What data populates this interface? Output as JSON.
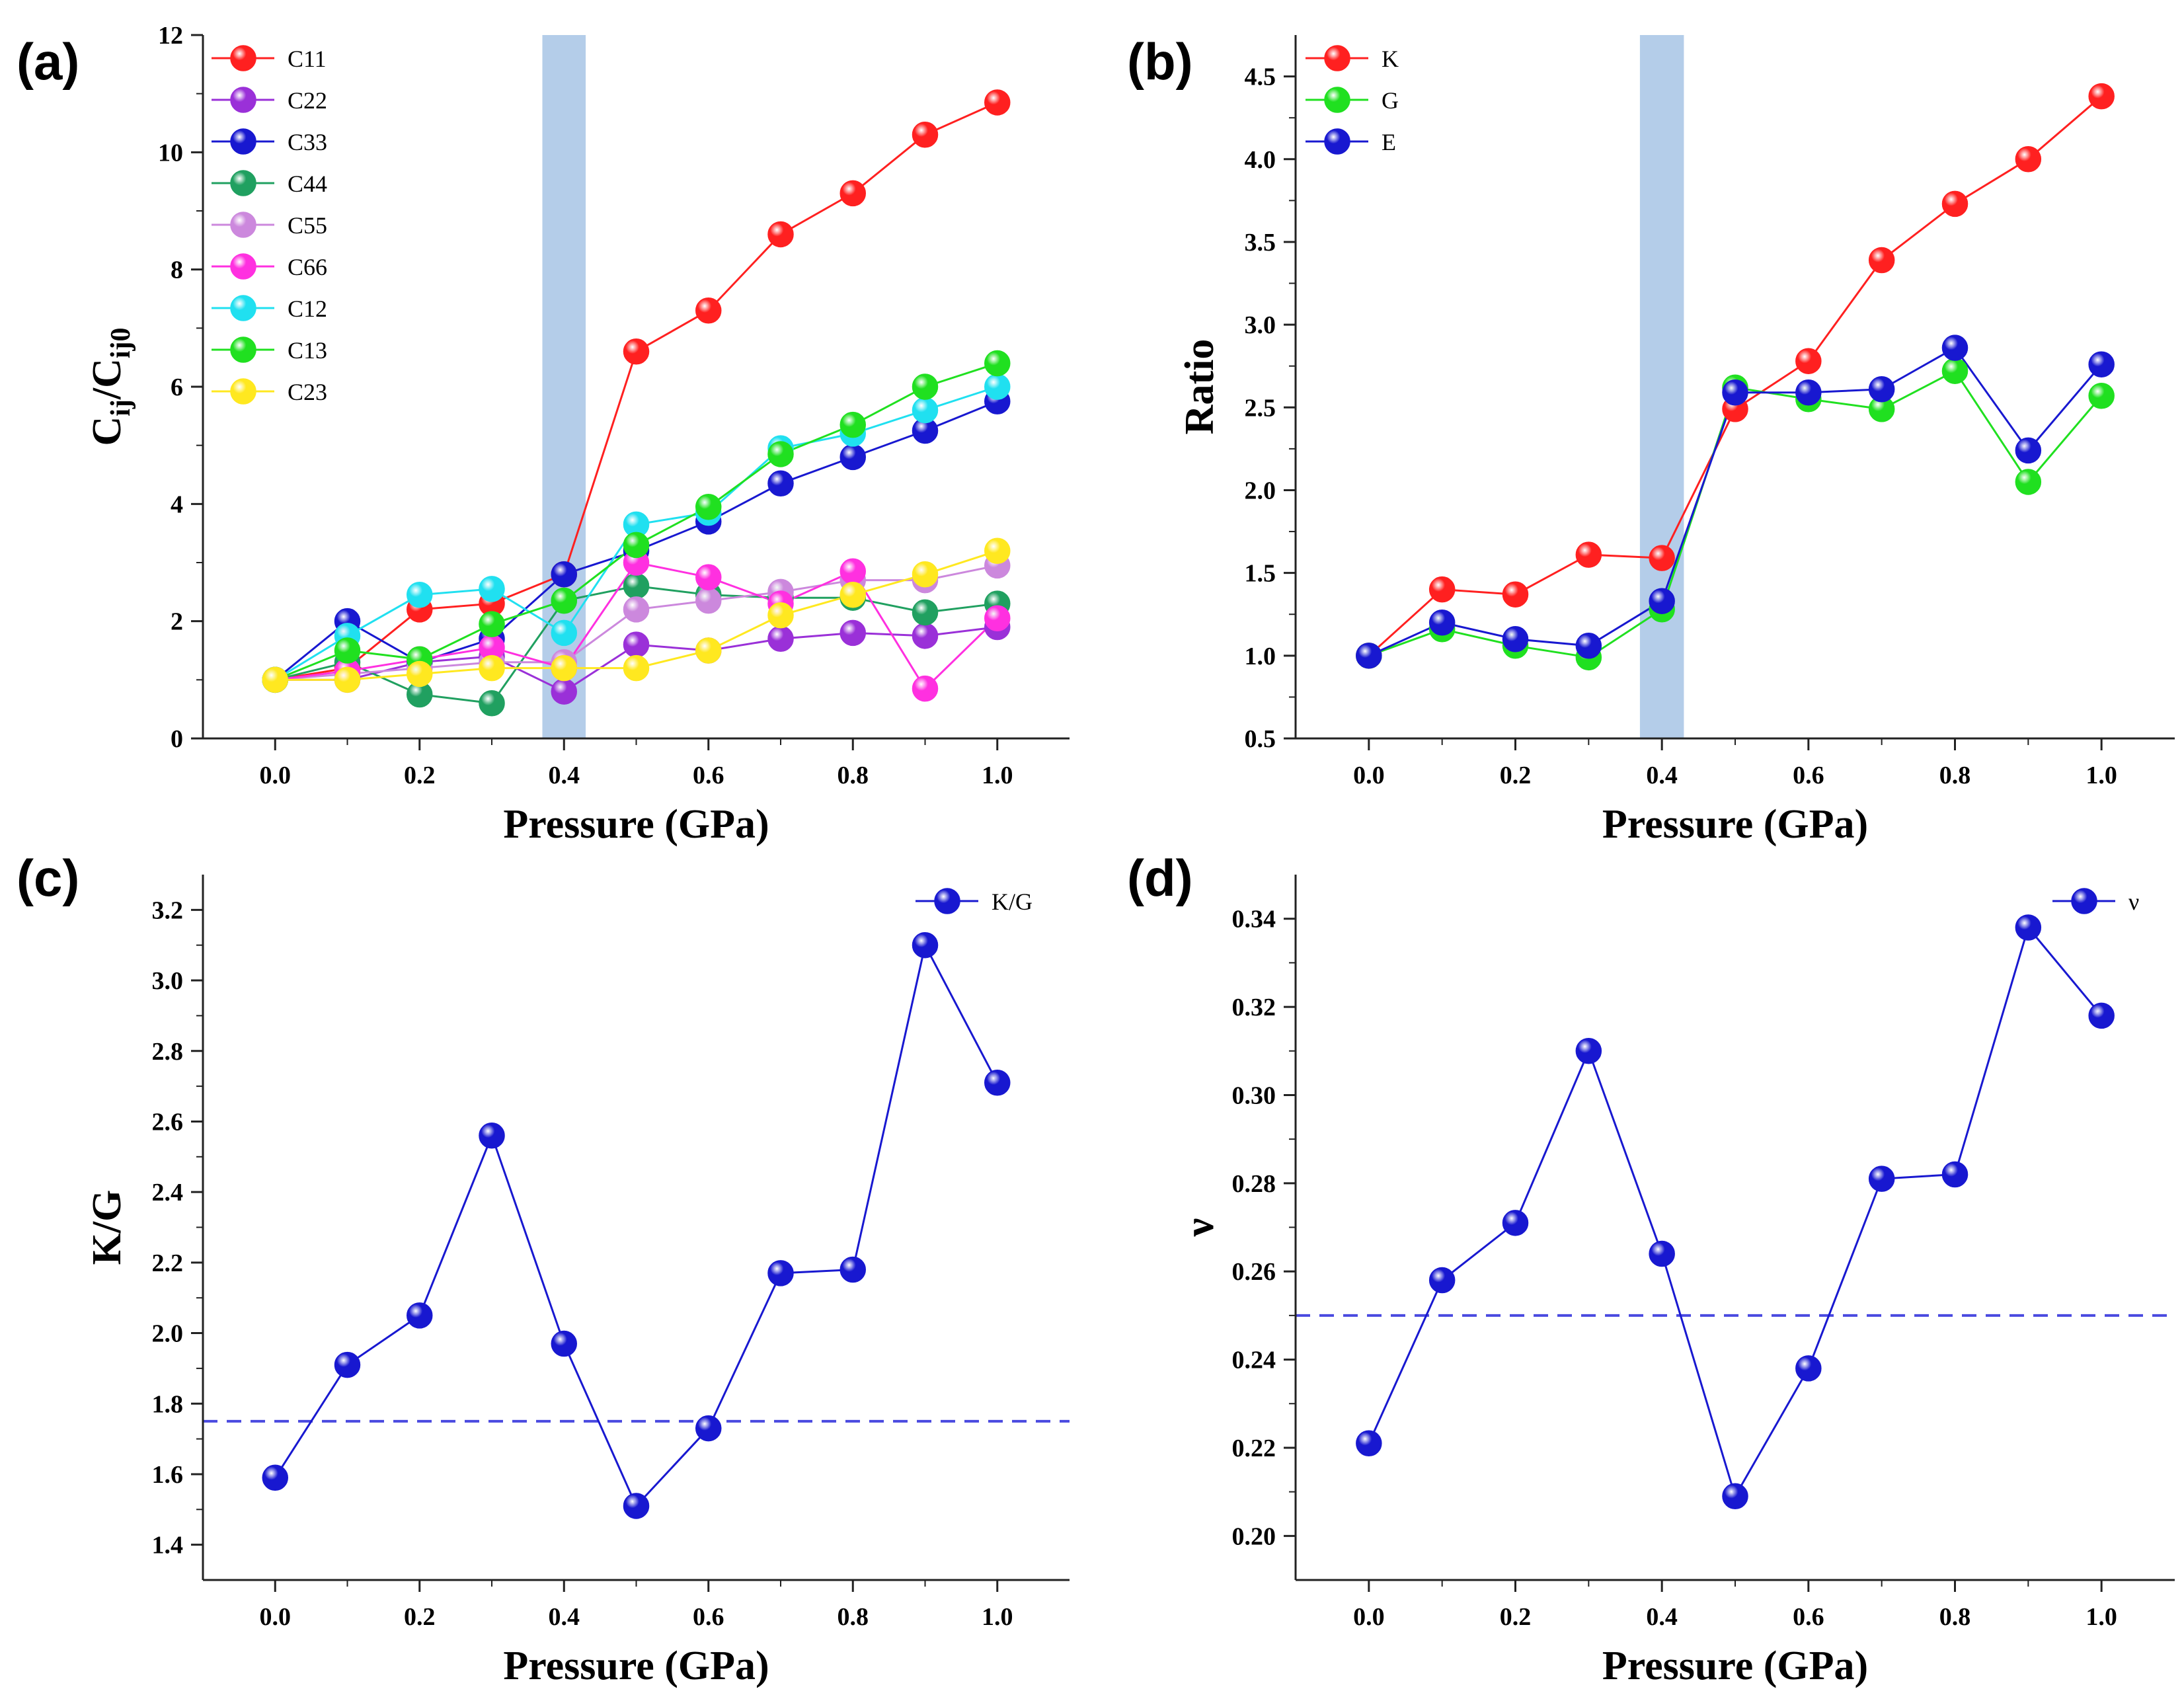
{
  "chart_data": [
    {
      "panel": "(a)",
      "type": "line",
      "xlabel": "Pressure (GPa)",
      "ylabel": "C",
      "ylabel_sub": "ij",
      "ylabel_sep": "/C",
      "ylabel_sub2": "ij0",
      "xlim": [
        -0.1,
        1.1
      ],
      "ylim": [
        0,
        12
      ],
      "xticks": [
        0.0,
        0.2,
        0.4,
        0.6,
        0.8,
        1.0
      ],
      "xtick_labels": [
        "0.0",
        "0.2",
        "0.4",
        "0.6",
        "0.8",
        "1.0"
      ],
      "yticks": [
        0,
        2,
        4,
        6,
        8,
        10,
        12
      ],
      "ytick_labels": [
        "0",
        "2",
        "4",
        "6",
        "8",
        "10",
        "12"
      ],
      "highlight_band": [
        0.37,
        0.43
      ],
      "legend_position": "top-left",
      "x": [
        0.0,
        0.1,
        0.2,
        0.3,
        0.4,
        0.5,
        0.6,
        0.7,
        0.8,
        0.9,
        1.0
      ],
      "series": [
        {
          "name": "C11",
          "color": "#ff2020",
          "values": [
            1.0,
            1.2,
            2.2,
            2.3,
            2.8,
            6.6,
            7.3,
            8.6,
            9.3,
            10.3,
            10.85
          ]
        },
        {
          "name": "C22",
          "color": "#9a30d8",
          "values": [
            1.0,
            1.0,
            1.3,
            1.4,
            0.8,
            1.6,
            1.5,
            1.7,
            1.8,
            1.75,
            1.9
          ]
        },
        {
          "name": "C33",
          "color": "#1818d0",
          "values": [
            1.0,
            2.0,
            1.3,
            1.7,
            2.8,
            3.2,
            3.7,
            4.35,
            4.8,
            5.25,
            5.75
          ]
        },
        {
          "name": "C44",
          "color": "#20a060",
          "values": [
            1.0,
            1.3,
            0.75,
            0.6,
            2.35,
            2.6,
            2.45,
            2.4,
            2.4,
            2.15,
            2.3
          ]
        },
        {
          "name": "C55",
          "color": "#cc88dd",
          "values": [
            1.0,
            1.1,
            1.2,
            1.3,
            1.3,
            2.2,
            2.35,
            2.5,
            2.7,
            2.7,
            2.95
          ]
        },
        {
          "name": "C66",
          "color": "#ff30e0",
          "values": [
            1.0,
            1.15,
            1.35,
            1.55,
            1.2,
            3.0,
            2.75,
            2.3,
            2.85,
            0.85,
            2.05
          ]
        },
        {
          "name": "C12",
          "color": "#20e0f0",
          "values": [
            1.0,
            1.75,
            2.45,
            2.55,
            1.8,
            3.65,
            3.85,
            4.95,
            5.2,
            5.6,
            6.0
          ]
        },
        {
          "name": "C13",
          "color": "#20e020",
          "values": [
            1.0,
            1.5,
            1.35,
            1.95,
            2.35,
            3.3,
            3.95,
            4.85,
            5.35,
            6.0,
            6.4
          ]
        },
        {
          "name": "C23",
          "color": "#ffe820",
          "values": [
            1.0,
            1.0,
            1.1,
            1.2,
            1.2,
            1.2,
            1.5,
            2.1,
            2.45,
            2.8,
            3.2
          ]
        }
      ]
    },
    {
      "panel": "(b)",
      "type": "line",
      "xlabel": "Pressure (GPa)",
      "ylabel": "Ratio",
      "xlim": [
        -0.1,
        1.1
      ],
      "ylim": [
        0.5,
        4.75
      ],
      "xticks": [
        0.0,
        0.2,
        0.4,
        0.6,
        0.8,
        1.0
      ],
      "xtick_labels": [
        "0.0",
        "0.2",
        "0.4",
        "0.6",
        "0.8",
        "1.0"
      ],
      "yticks": [
        0.5,
        1.0,
        1.5,
        2.0,
        2.5,
        3.0,
        3.5,
        4.0,
        4.5
      ],
      "ytick_labels": [
        "0.5",
        "1.0",
        "1.5",
        "2.0",
        "2.5",
        "3.0",
        "3.5",
        "4.0",
        "4.5"
      ],
      "highlight_band": [
        0.37,
        0.43
      ],
      "legend_position": "top-left",
      "x": [
        0.0,
        0.1,
        0.2,
        0.3,
        0.4,
        0.5,
        0.6,
        0.7,
        0.8,
        0.9,
        1.0
      ],
      "series": [
        {
          "name": "K",
          "color": "#ff2020",
          "values": [
            1.0,
            1.4,
            1.37,
            1.61,
            1.59,
            2.49,
            2.78,
            3.39,
            3.73,
            4.0,
            4.38
          ]
        },
        {
          "name": "G",
          "color": "#20e020",
          "values": [
            1.0,
            1.16,
            1.06,
            0.99,
            1.28,
            2.62,
            2.55,
            2.49,
            2.72,
            2.05,
            2.57
          ]
        },
        {
          "name": "E",
          "color": "#1818d0",
          "values": [
            1.0,
            1.2,
            1.1,
            1.06,
            1.33,
            2.59,
            2.59,
            2.61,
            2.86,
            2.24,
            2.76
          ]
        }
      ]
    },
    {
      "panel": "(c)",
      "type": "line",
      "xlabel": "Pressure (GPa)",
      "ylabel": "K/G",
      "xlim": [
        -0.1,
        1.1
      ],
      "ylim": [
        1.3,
        3.3
      ],
      "xticks": [
        0.0,
        0.2,
        0.4,
        0.6,
        0.8,
        1.0
      ],
      "xtick_labels": [
        "0.0",
        "0.2",
        "0.4",
        "0.6",
        "0.8",
        "1.0"
      ],
      "yticks": [
        1.4,
        1.6,
        1.8,
        2.0,
        2.2,
        2.4,
        2.6,
        2.8,
        3.0,
        3.2
      ],
      "ytick_labels": [
        "1.4",
        "1.6",
        "1.8",
        "2.0",
        "2.2",
        "2.4",
        "2.6",
        "2.8",
        "3.0",
        "3.2"
      ],
      "reference_line": 1.75,
      "legend_position": "top-right",
      "x": [
        0.0,
        0.1,
        0.2,
        0.3,
        0.4,
        0.5,
        0.6,
        0.7,
        0.8,
        0.9,
        1.0
      ],
      "series": [
        {
          "name": "K/G",
          "color": "#1818d0",
          "values": [
            1.59,
            1.91,
            2.05,
            2.56,
            1.97,
            1.51,
            1.73,
            2.17,
            2.18,
            3.1,
            2.71
          ]
        }
      ]
    },
    {
      "panel": "(d)",
      "type": "line",
      "xlabel": "Pressure (GPa)",
      "ylabel": "ν",
      "xlim": [
        -0.1,
        1.1
      ],
      "ylim": [
        0.19,
        0.35
      ],
      "xticks": [
        0.0,
        0.2,
        0.4,
        0.6,
        0.8,
        1.0
      ],
      "xtick_labels": [
        "0.0",
        "0.2",
        "0.4",
        "0.6",
        "0.8",
        "1.0"
      ],
      "yticks": [
        0.2,
        0.22,
        0.24,
        0.26,
        0.28,
        0.3,
        0.32,
        0.34
      ],
      "ytick_labels": [
        "0.20",
        "0.22",
        "0.24",
        "0.26",
        "0.28",
        "0.30",
        "0.32",
        "0.34"
      ],
      "reference_line": 0.25,
      "legend_position": "top-right",
      "x": [
        0.0,
        0.1,
        0.2,
        0.3,
        0.4,
        0.5,
        0.6,
        0.7,
        0.8,
        0.9,
        1.0
      ],
      "series": [
        {
          "name": "ν",
          "color": "#1818d0",
          "values": [
            0.221,
            0.258,
            0.271,
            0.31,
            0.264,
            0.209,
            0.238,
            0.281,
            0.282,
            0.338,
            0.318
          ]
        }
      ]
    }
  ]
}
